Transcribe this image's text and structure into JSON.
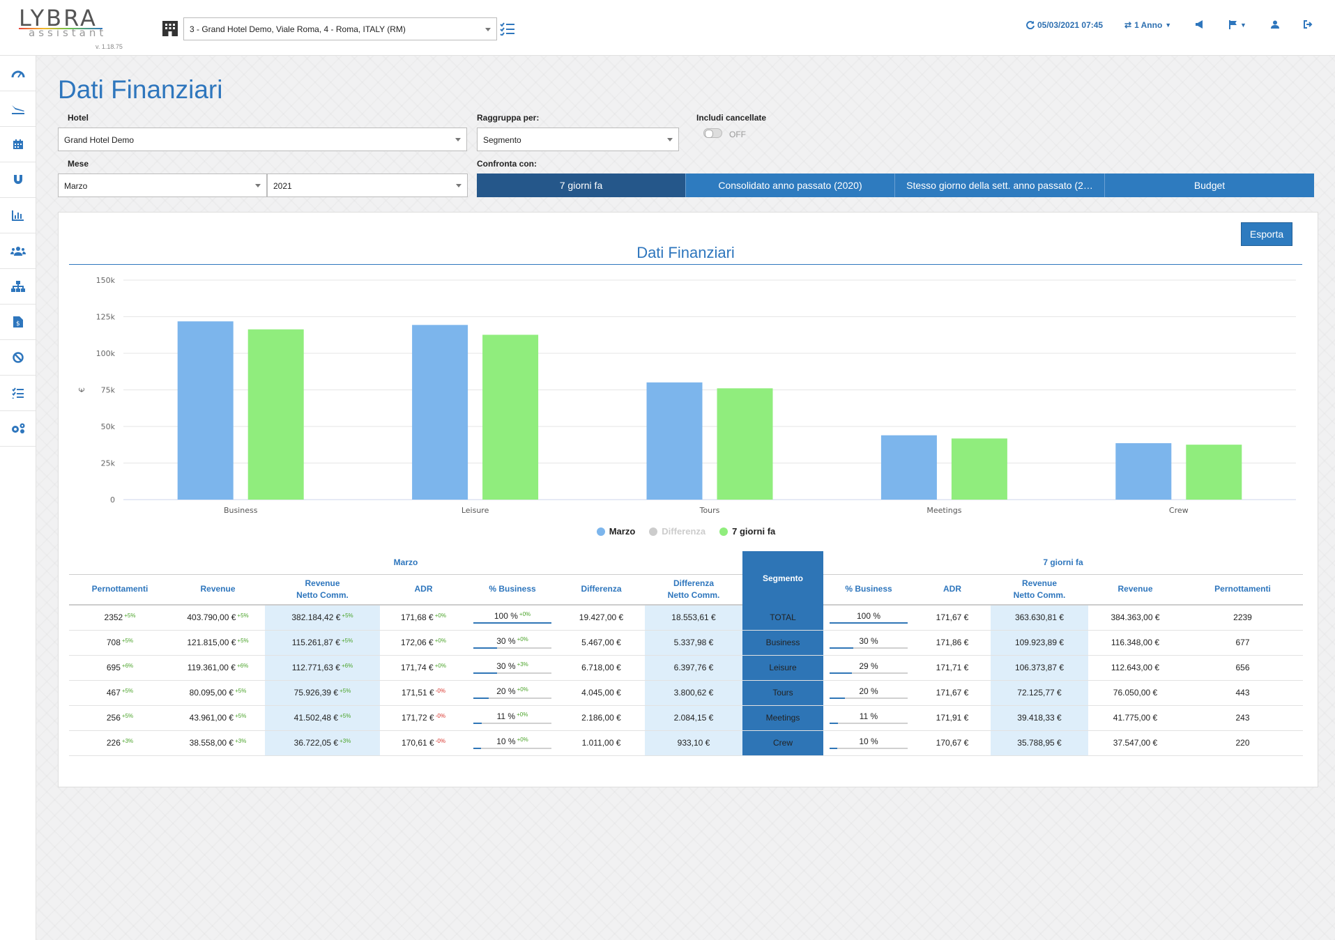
{
  "app": {
    "logo": "LYBRA",
    "logo_sub": "assistant",
    "version": "v. 1.18.75"
  },
  "topbar": {
    "hotel_select": "3 - Grand Hotel Demo, Viale Roma, 4 - Roma, ITALY (RM)",
    "datetime": "05/03/2021 07:45",
    "period": "1 Anno"
  },
  "sidebar": {
    "items": [
      "dashboard-icon",
      "arrivals-icon",
      "calendar-icon",
      "magnet-icon",
      "bar-chart-icon",
      "users-icon",
      "sitemap-icon",
      "invoice-icon",
      "ban-icon",
      "checklist-icon",
      "settings-icon"
    ]
  },
  "page": {
    "title": "Dati Finanziari"
  },
  "filters": {
    "hotel_label": "Hotel",
    "hotel_value": "Grand Hotel Demo",
    "group_label": "Raggruppa per:",
    "group_value": "Segmento",
    "cancel_label": "Includi cancellate",
    "cancel_state": "OFF",
    "month_label": "Mese",
    "month_value": "Marzo",
    "year_value": "2021",
    "compare_label": "Confronta con:",
    "compare_options": [
      "7 giorni fa",
      "Consolidato anno passato (2020)",
      "Stesso giorno della sett. anno passato (2…",
      "Budget"
    ]
  },
  "export_label": "Esporta",
  "colors": {
    "accent": "#2e76bd",
    "current": "#7cb5ec",
    "compare": "#90ed7d",
    "diff": "#cccccc"
  },
  "chart_data": {
    "type": "bar",
    "title": "Dati Finanziari",
    "ylabel": "€",
    "ylim": [
      0,
      150000
    ],
    "yticks": [
      "0",
      "25k",
      "50k",
      "75k",
      "100k",
      "125k",
      "150k"
    ],
    "categories": [
      "Business",
      "Leisure",
      "Tours",
      "Meetings",
      "Crew"
    ],
    "series": [
      {
        "name": "Marzo",
        "values": [
          121815,
          119361,
          80095,
          43961,
          38558
        ]
      },
      {
        "name": "Differenza",
        "values": [
          5467,
          6718,
          4045,
          2186,
          1011
        ],
        "hidden": true
      },
      {
        "name": "7 giorni fa",
        "values": [
          116348,
          112643,
          76050,
          41775,
          37547
        ]
      }
    ]
  },
  "table": {
    "group_current": "Marzo",
    "group_compare": "7 giorni fa",
    "segment_header": "Segmento",
    "headers_left": [
      "Pernottamenti",
      "Revenue",
      "Revenue\nNetto Comm.",
      "ADR",
      "% Business",
      "Differenza",
      "Differenza\nNetto Comm."
    ],
    "headers_right": [
      "% Business",
      "ADR",
      "Revenue\nNetto Comm.",
      "Revenue",
      "Pernottamenti"
    ],
    "rows": [
      {
        "pern": "2352",
        "pern_d": "+5%",
        "rev": "403.790,00 €",
        "rev_d": "+5%",
        "net": "382.184,42 €",
        "net_d": "+5%",
        "adr": "171,68 €",
        "adr_d": "+0%",
        "pct": "100 %",
        "pct_d": "+0%",
        "pct_v": 100,
        "diff": "19.427,00 €",
        "diff_net": "18.553,61 €",
        "seg": "TOTAL",
        "c_pct": "100 %",
        "c_pct_v": 100,
        "c_adr": "171,67 €",
        "c_net": "363.630,81 €",
        "c_rev": "384.363,00 €",
        "c_pern": "2239"
      },
      {
        "pern": "708",
        "pern_d": "+5%",
        "rev": "121.815,00 €",
        "rev_d": "+5%",
        "net": "115.261,87 €",
        "net_d": "+5%",
        "adr": "172,06 €",
        "adr_d": "+0%",
        "pct": "30 %",
        "pct_d": "+0%",
        "pct_v": 30,
        "diff": "5.467,00 €",
        "diff_net": "5.337,98 €",
        "seg": "Business",
        "c_pct": "30 %",
        "c_pct_v": 30,
        "c_adr": "171,86 €",
        "c_net": "109.923,89 €",
        "c_rev": "116.348,00 €",
        "c_pern": "677"
      },
      {
        "pern": "695",
        "pern_d": "+6%",
        "rev": "119.361,00 €",
        "rev_d": "+6%",
        "net": "112.771,63 €",
        "net_d": "+6%",
        "adr": "171,74 €",
        "adr_d": "+0%",
        "pct": "30 %",
        "pct_d": "+3%",
        "pct_v": 30,
        "diff": "6.718,00 €",
        "diff_net": "6.397,76 €",
        "seg": "Leisure",
        "c_pct": "29 %",
        "c_pct_v": 29,
        "c_adr": "171,71 €",
        "c_net": "106.373,87 €",
        "c_rev": "112.643,00 €",
        "c_pern": "656"
      },
      {
        "pern": "467",
        "pern_d": "+5%",
        "rev": "80.095,00 €",
        "rev_d": "+5%",
        "net": "75.926,39 €",
        "net_d": "+5%",
        "adr": "171,51 €",
        "adr_d": "-0%",
        "pct": "20 %",
        "pct_d": "+0%",
        "pct_v": 20,
        "diff": "4.045,00 €",
        "diff_net": "3.800,62 €",
        "seg": "Tours",
        "c_pct": "20 %",
        "c_pct_v": 20,
        "c_adr": "171,67 €",
        "c_net": "72.125,77 €",
        "c_rev": "76.050,00 €",
        "c_pern": "443"
      },
      {
        "pern": "256",
        "pern_d": "+5%",
        "rev": "43.961,00 €",
        "rev_d": "+5%",
        "net": "41.502,48 €",
        "net_d": "+5%",
        "adr": "171,72 €",
        "adr_d": "-0%",
        "pct": "11 %",
        "pct_d": "+0%",
        "pct_v": 11,
        "diff": "2.186,00 €",
        "diff_net": "2.084,15 €",
        "seg": "Meetings",
        "c_pct": "11 %",
        "c_pct_v": 11,
        "c_adr": "171,91 €",
        "c_net": "39.418,33 €",
        "c_rev": "41.775,00 €",
        "c_pern": "243"
      },
      {
        "pern": "226",
        "pern_d": "+3%",
        "rev": "38.558,00 €",
        "rev_d": "+3%",
        "net": "36.722,05 €",
        "net_d": "+3%",
        "adr": "170,61 €",
        "adr_d": "-0%",
        "pct": "10 %",
        "pct_d": "+0%",
        "pct_v": 10,
        "diff": "1.011,00 €",
        "diff_net": "933,10 €",
        "seg": "Crew",
        "c_pct": "10 %",
        "c_pct_v": 10,
        "c_adr": "170,67 €",
        "c_net": "35.788,95 €",
        "c_rev": "37.547,00 €",
        "c_pern": "220"
      }
    ]
  }
}
